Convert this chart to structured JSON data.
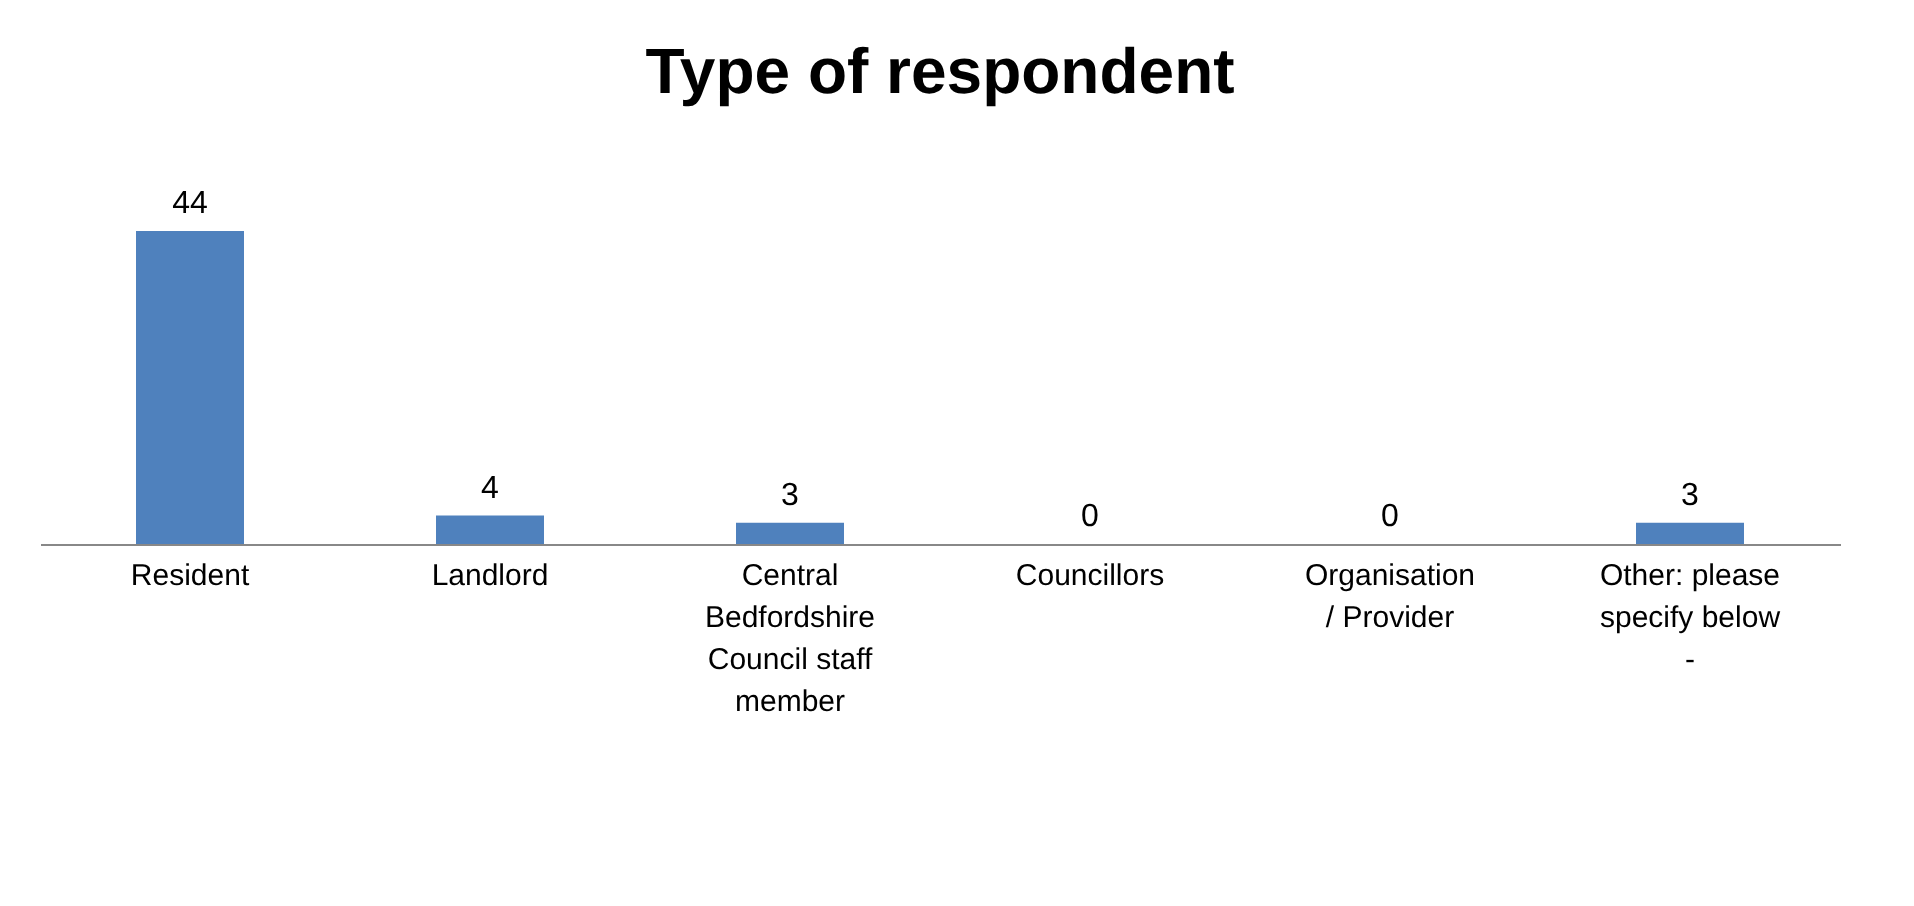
{
  "chart_data": {
    "type": "bar",
    "title": "Type of respondent",
    "categories": [
      "Resident",
      "Landlord",
      "Central Bedfordshire Council staff member",
      "Councillors",
      "Organisation / Provider",
      "Other: please specify below -"
    ],
    "values": [
      44,
      4,
      3,
      0,
      0,
      3
    ],
    "color": "#4f81bd",
    "data_labels": true
  }
}
